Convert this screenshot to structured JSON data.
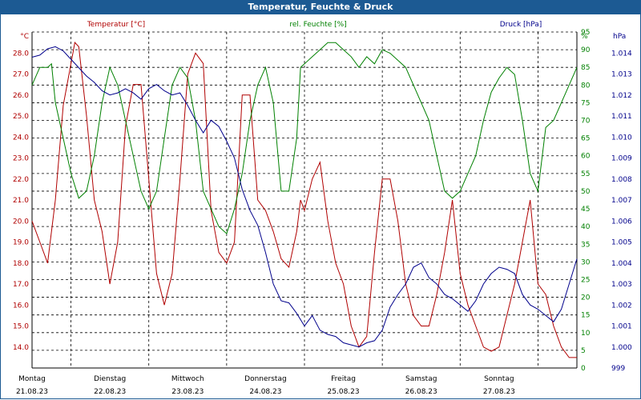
{
  "title": "Temperatur, Feuchte & Druck",
  "colors": {
    "temperature": "#b00000",
    "humidity": "#008000",
    "pressure": "#00008b",
    "title_bg": "#1c5a93"
  },
  "chart_data": {
    "type": "line",
    "title": "Temperatur, Feuchte & Druck",
    "x_range": [
      0,
      7
    ],
    "days": [
      {
        "name": "Montag",
        "date": "21.08.23"
      },
      {
        "name": "Dienstag",
        "date": "22.08.23"
      },
      {
        "name": "Mittwoch",
        "date": "23.08.23"
      },
      {
        "name": "Donnerstag",
        "date": "24.08.23"
      },
      {
        "name": "Freitag",
        "date": "25.08.23"
      },
      {
        "name": "Samstag",
        "date": "26.08.23"
      },
      {
        "name": "Sonntag",
        "date": "27.08.23"
      }
    ],
    "axes": {
      "temperature": {
        "label": "Temperatur [°C]",
        "unit": "°C",
        "min": 13.0,
        "max": 29.0,
        "ticks": [
          "14.0",
          "15.0",
          "16.0",
          "17.0",
          "18.0",
          "19.0",
          "20.0",
          "21.0",
          "22.0",
          "23.0",
          "24.0",
          "25.0",
          "26.0",
          "27.0",
          "28.0"
        ]
      },
      "humidity": {
        "label": "rel. Feuchte [%]",
        "unit": "%",
        "min": 0,
        "max": 95,
        "ticks": [
          "0",
          "5",
          "10",
          "15",
          "20",
          "25",
          "30",
          "35",
          "40",
          "45",
          "50",
          "55",
          "60",
          "65",
          "70",
          "75",
          "80",
          "85",
          "90",
          "95"
        ]
      },
      "pressure": {
        "label": "Druck [hPa]",
        "unit": "hPa",
        "min": 0.999,
        "max": 1.015,
        "ticks": [
          "999",
          "1.000",
          "1.001",
          "1.002",
          "1.003",
          "1.004",
          "1.005",
          "1.006",
          "1.007",
          "1.008",
          "1.009",
          "1.010",
          "1.011",
          "1.012",
          "1.013",
          "1.014"
        ]
      }
    },
    "series": [
      {
        "name": "Temperatur",
        "axis": "temperature",
        "x": [
          0,
          0.1,
          0.2,
          0.3,
          0.4,
          0.5,
          0.55,
          0.6,
          0.7,
          0.8,
          0.9,
          1.0,
          1.1,
          1.2,
          1.3,
          1.4,
          1.5,
          1.6,
          1.7,
          1.8,
          1.9,
          2.0,
          2.1,
          2.2,
          2.3,
          2.4,
          2.5,
          2.6,
          2.7,
          2.8,
          2.9,
          3.0,
          3.1,
          3.2,
          3.3,
          3.4,
          3.45,
          3.5,
          3.6,
          3.7,
          3.8,
          3.9,
          4.0,
          4.1,
          4.2,
          4.3,
          4.4,
          4.5,
          4.6,
          4.7,
          4.8,
          4.9,
          5.0,
          5.1,
          5.2,
          5.3,
          5.4,
          5.5,
          5.6,
          5.7,
          5.8,
          5.9,
          6.0,
          6.1,
          6.2,
          6.3,
          6.4,
          6.5,
          6.6,
          6.7,
          6.8,
          6.9,
          7.0
        ],
        "values": [
          20.0,
          19.0,
          18.0,
          21.0,
          25.5,
          27.5,
          28.5,
          28.3,
          25.0,
          21.0,
          19.5,
          17.0,
          19.0,
          24.5,
          26.5,
          26.5,
          22.0,
          17.5,
          16.0,
          17.5,
          22.0,
          27.0,
          28.0,
          27.5,
          20.5,
          18.5,
          18.0,
          19.0,
          26.0,
          26.0,
          21.0,
          20.5,
          19.5,
          18.2,
          17.8,
          19.5,
          21.0,
          20.5,
          22.0,
          22.8,
          20.0,
          18.0,
          17.0,
          15.0,
          14.0,
          14.5,
          18.5,
          22.0,
          22.0,
          20.0,
          17.0,
          15.5,
          15.0,
          15.0,
          16.5,
          18.5,
          21.0,
          17.5,
          16.0,
          15.0,
          14.0,
          13.8,
          14.0,
          15.5,
          17.0,
          19.0,
          21.0,
          17.0,
          16.5,
          15.0,
          14.0,
          13.5,
          13.5
        ]
      },
      {
        "name": "rel. Feuchte",
        "axis": "humidity",
        "x": [
          0,
          0.1,
          0.2,
          0.25,
          0.3,
          0.4,
          0.5,
          0.6,
          0.7,
          0.8,
          0.9,
          1.0,
          1.1,
          1.2,
          1.3,
          1.4,
          1.5,
          1.6,
          1.7,
          1.8,
          1.9,
          2.0,
          2.1,
          2.2,
          2.3,
          2.4,
          2.5,
          2.6,
          2.7,
          2.8,
          2.9,
          3.0,
          3.1,
          3.2,
          3.3,
          3.4,
          3.45,
          3.5,
          3.6,
          3.7,
          3.8,
          3.9,
          4.0,
          4.1,
          4.2,
          4.3,
          4.4,
          4.5,
          4.6,
          4.7,
          4.8,
          4.9,
          5.0,
          5.1,
          5.2,
          5.3,
          5.4,
          5.5,
          5.6,
          5.7,
          5.8,
          5.9,
          6.0,
          6.1,
          6.2,
          6.3,
          6.4,
          6.5,
          6.6,
          6.7,
          6.8,
          6.9,
          7.0
        ],
        "values": [
          80,
          85,
          85,
          86,
          75,
          65,
          55,
          48,
          50,
          60,
          75,
          85,
          80,
          70,
          60,
          50,
          45,
          50,
          65,
          80,
          85,
          82,
          70,
          50,
          45,
          40,
          38,
          45,
          55,
          70,
          80,
          85,
          75,
          50,
          50,
          65,
          85,
          86,
          88,
          90,
          92,
          92,
          90,
          88,
          85,
          88,
          86,
          90,
          89,
          87,
          85,
          80,
          75,
          70,
          60,
          50,
          48,
          50,
          55,
          60,
          70,
          78,
          82,
          85,
          83,
          70,
          55,
          50,
          68,
          70,
          75,
          80,
          85
        ]
      },
      {
        "name": "Druck",
        "axis": "pressure",
        "x": [
          0,
          0.1,
          0.2,
          0.3,
          0.4,
          0.5,
          0.6,
          0.7,
          0.8,
          0.9,
          1.0,
          1.1,
          1.2,
          1.3,
          1.4,
          1.5,
          1.6,
          1.7,
          1.8,
          1.9,
          2.0,
          2.1,
          2.2,
          2.3,
          2.4,
          2.5,
          2.6,
          2.7,
          2.8,
          2.9,
          3.0,
          3.1,
          3.2,
          3.3,
          3.4,
          3.5,
          3.6,
          3.7,
          3.8,
          3.9,
          4.0,
          4.1,
          4.2,
          4.3,
          4.4,
          4.5,
          4.6,
          4.7,
          4.8,
          4.9,
          5.0,
          5.1,
          5.2,
          5.3,
          5.4,
          5.5,
          5.6,
          5.7,
          5.8,
          5.9,
          6.0,
          6.1,
          6.2,
          6.3,
          6.4,
          6.5,
          6.6,
          6.7,
          6.8,
          6.9,
          7.0
        ],
        "values": [
          1.0138,
          1.0139,
          1.0142,
          1.0143,
          1.0141,
          1.0137,
          1.0133,
          1.0129,
          1.0126,
          1.0122,
          1.012,
          1.0121,
          1.0123,
          1.0121,
          1.0118,
          1.0123,
          1.0125,
          1.0122,
          1.012,
          1.0121,
          1.0115,
          1.0108,
          1.0102,
          1.0108,
          1.0105,
          1.0098,
          1.009,
          1.0075,
          1.0065,
          1.0058,
          1.0045,
          1.003,
          1.0022,
          1.0021,
          1.0016,
          1.001,
          1.0015,
          1.0008,
          1.0006,
          1.0005,
          1.0002,
          1.0001,
          1.0,
          1.0002,
          1.0003,
          1.0008,
          1.0019,
          1.0025,
          1.003,
          1.0038,
          1.004,
          1.0033,
          1.003,
          1.0025,
          1.0023,
          1.002,
          1.0017,
          1.0022,
          1.003,
          1.0035,
          1.0038,
          1.0037,
          1.0035,
          1.0025,
          1.002,
          1.0018,
          1.0015,
          1.0012,
          1.0018,
          1.003,
          1.0042
        ]
      }
    ]
  }
}
